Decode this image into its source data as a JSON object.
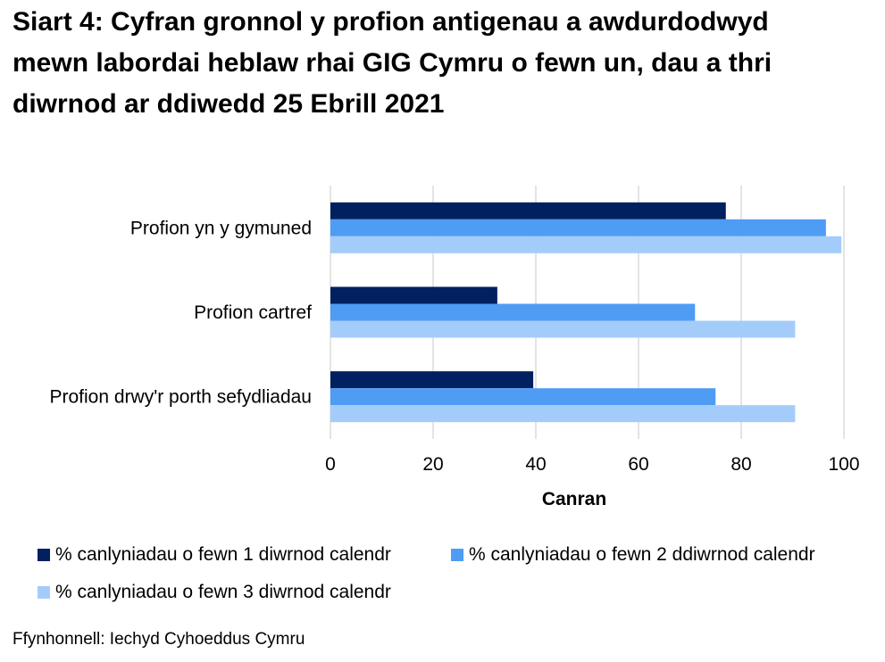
{
  "title": "Siart 4: Cyfran gronnol y profion antigenau a awdurdodwyd mewn labordai heblaw rhai GIG Cymru o fewn un, dau a thri diwrnod ar ddiwedd 25 Ebrill 2021",
  "source": "Ffynhonnell: Iechyd Cyhoeddus Cymru",
  "chart_data": {
    "type": "bar",
    "orientation": "horizontal",
    "categories": [
      "Profion yn y gymuned",
      "Profion cartref",
      "Profion drwy'r porth sefydliadau"
    ],
    "series": [
      {
        "name": "% canlyniadau o fewn 1 diwrnod calendr",
        "color": "#002060",
        "values": [
          77,
          32.5,
          39.5
        ]
      },
      {
        "name": "% canlyniadau o fewn 2 ddiwrnod calendr",
        "color": "#4f9cf5",
        "values": [
          96.5,
          71,
          75
        ]
      },
      {
        "name": "% canlyniadau o fewn 3 diwrnod calendr",
        "color": "#a4ccfa",
        "values": [
          99.5,
          90.5,
          90.5
        ]
      }
    ],
    "xlabel": "Canran",
    "ylabel": "",
    "xlim": [
      0,
      100
    ],
    "xticks": [
      "0",
      "20",
      "40",
      "60",
      "80",
      "100"
    ],
    "grid": true,
    "legend_position": "bottom"
  }
}
